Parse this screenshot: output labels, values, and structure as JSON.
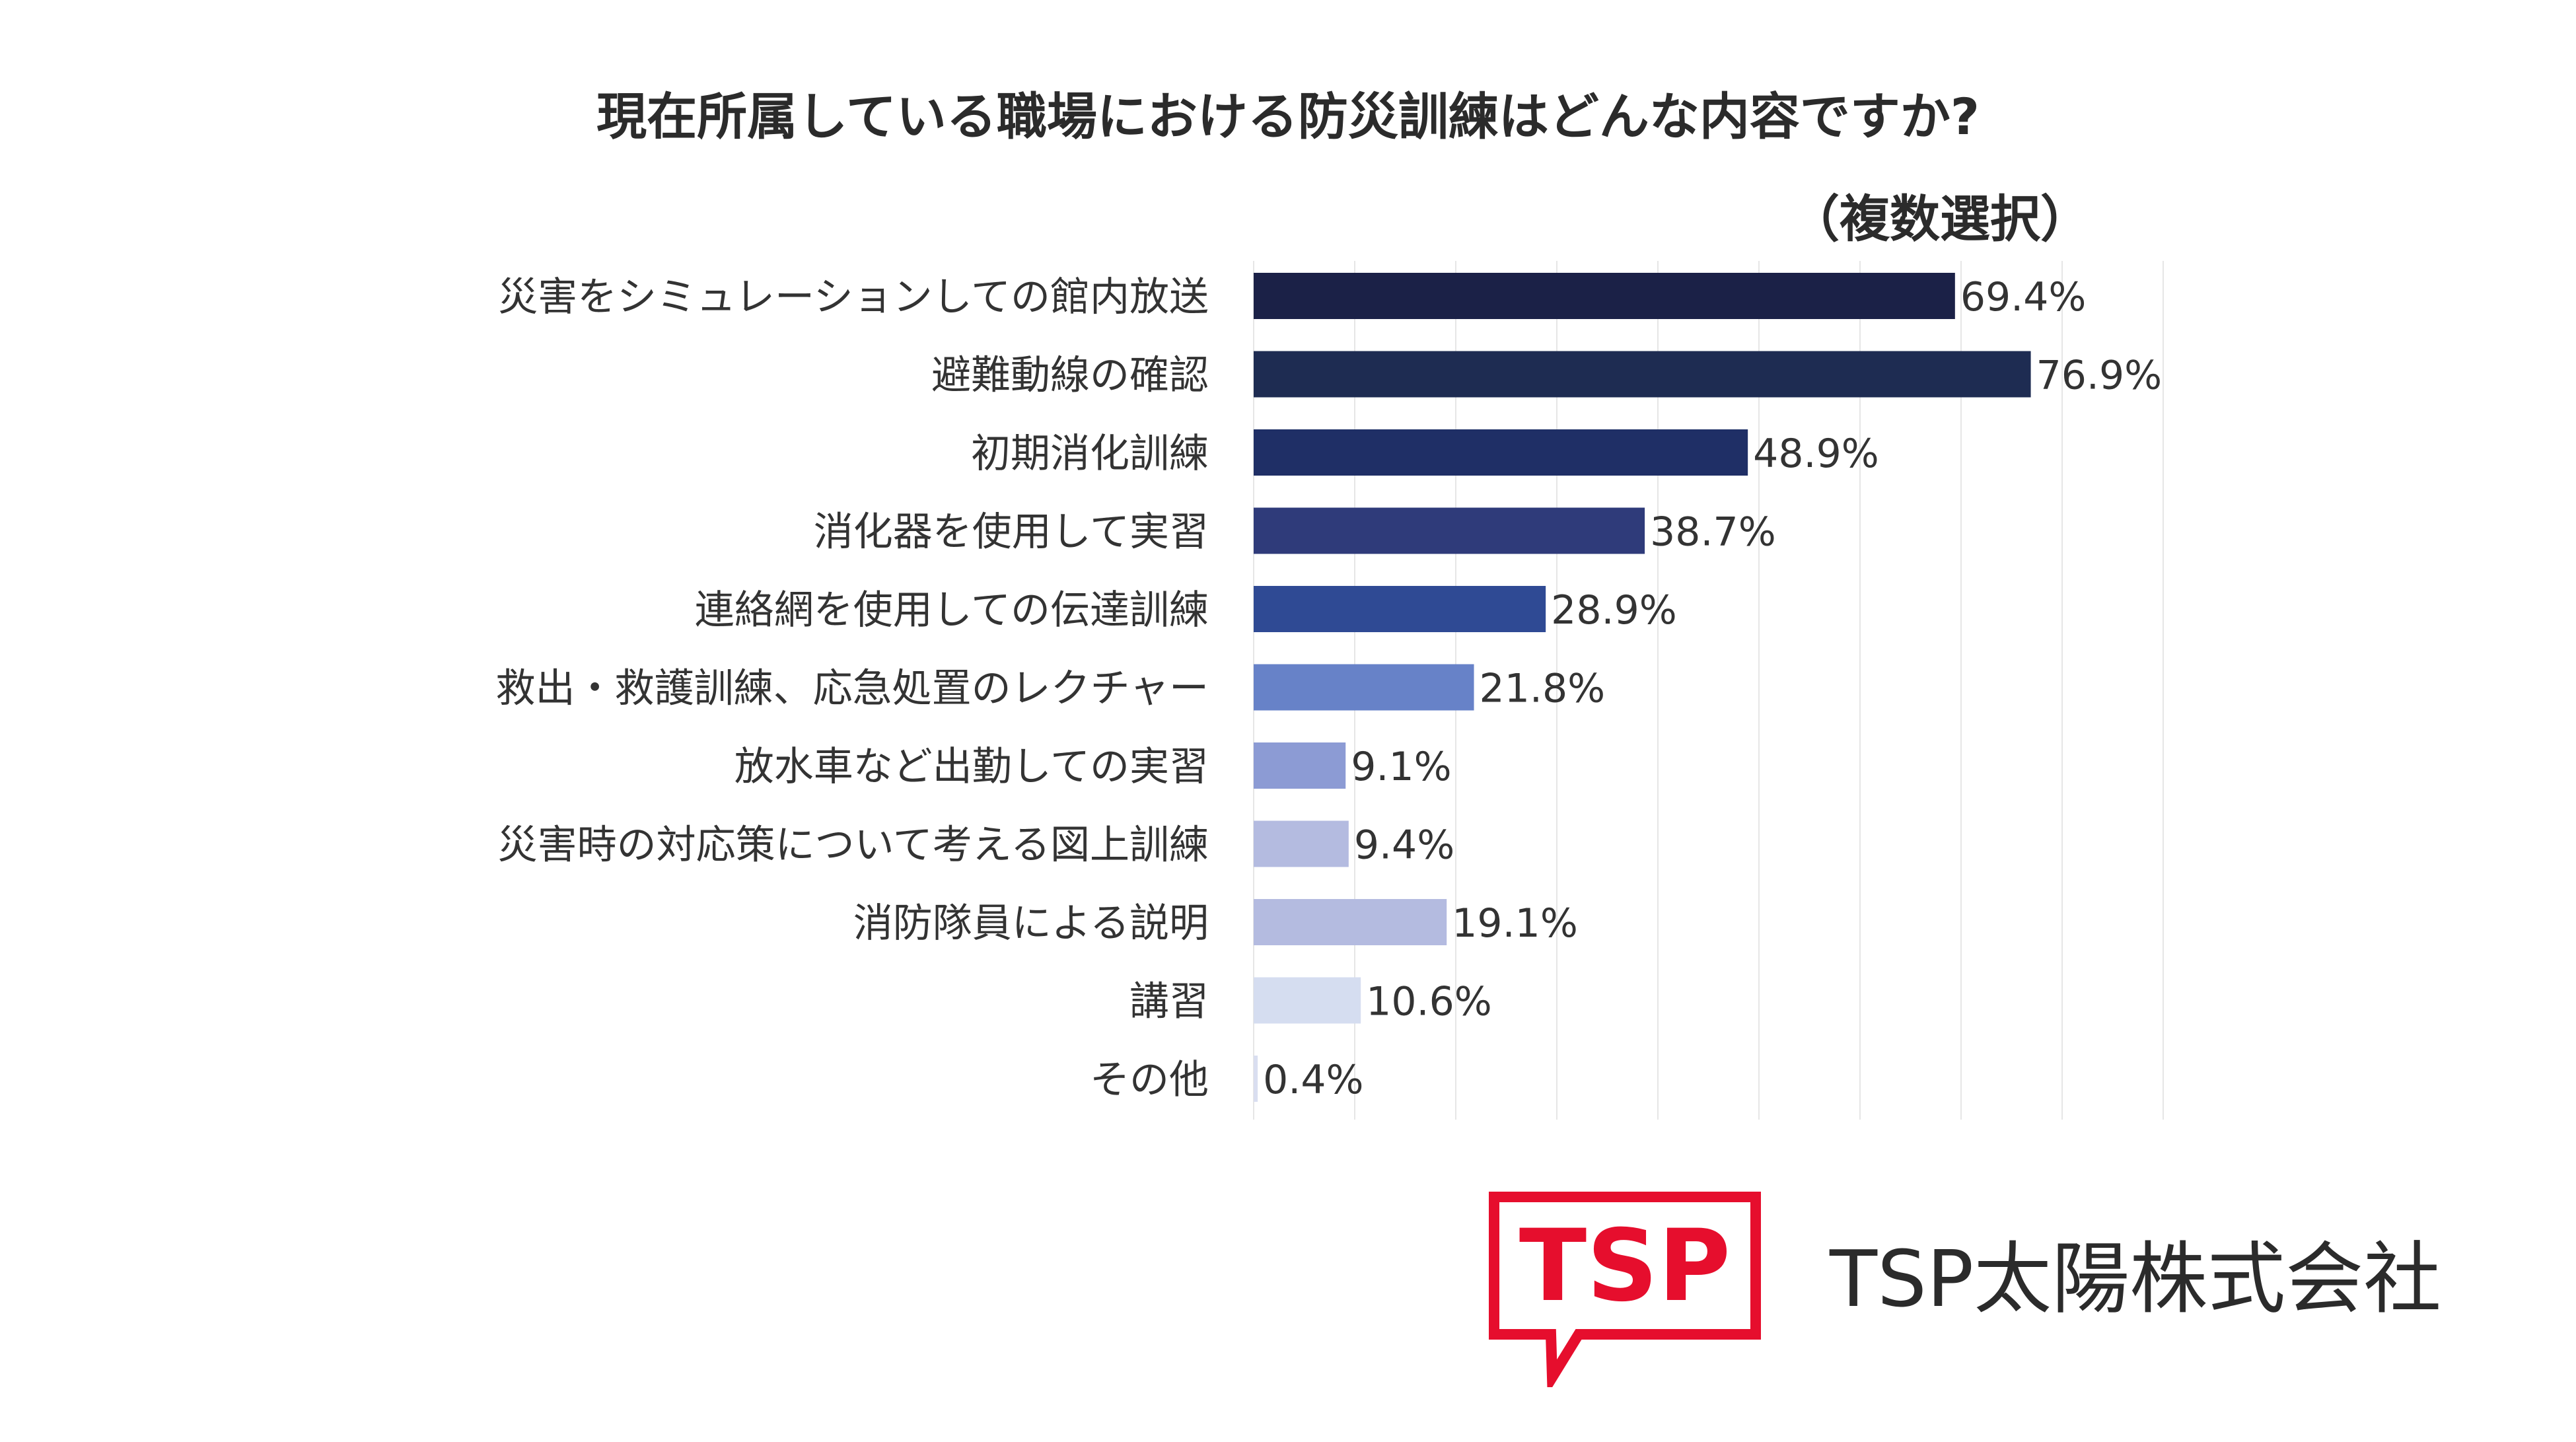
{
  "chart_data": {
    "type": "bar",
    "orientation": "horizontal",
    "title": "現在所属している職場における防災訓練はどんな内容ですか?",
    "subtitle": "（複数選択）",
    "categories": [
      "災害をシミュレーションしての館内放送",
      "避難動線の確認",
      "初期消化訓練",
      "消化器を使用して実習",
      "連絡網を使用しての伝達訓練",
      "救出・救護訓練、応急処置のレクチャー",
      "放水車など出勤しての実習",
      "災害時の対応策について考える図上訓練",
      "消防隊員による説明",
      "講習",
      "その他"
    ],
    "values": [
      69.4,
      76.9,
      48.9,
      38.7,
      28.9,
      21.8,
      9.1,
      9.4,
      19.1,
      10.6,
      0.4
    ],
    "value_labels": [
      "69.4%",
      "76.9%",
      "48.9%",
      "38.7%",
      "28.9%",
      "21.8%",
      "9.1%",
      "9.4%",
      "19.1%",
      "10.6%",
      "0.4%"
    ],
    "colors": [
      "#1b2147",
      "#1e2c52",
      "#1f2f66",
      "#2f3b7a",
      "#2f4a94",
      "#6782c8",
      "#8c9bd4",
      "#b4bbe0",
      "#b4bbe0",
      "#d5ddf0",
      "#d9def0"
    ],
    "xlim": [
      0,
      90
    ],
    "grid": true
  },
  "brand": {
    "logo_text": "TSP",
    "company_name": "TSP太陽株式会社",
    "logo_color": "#e60e2d"
  }
}
